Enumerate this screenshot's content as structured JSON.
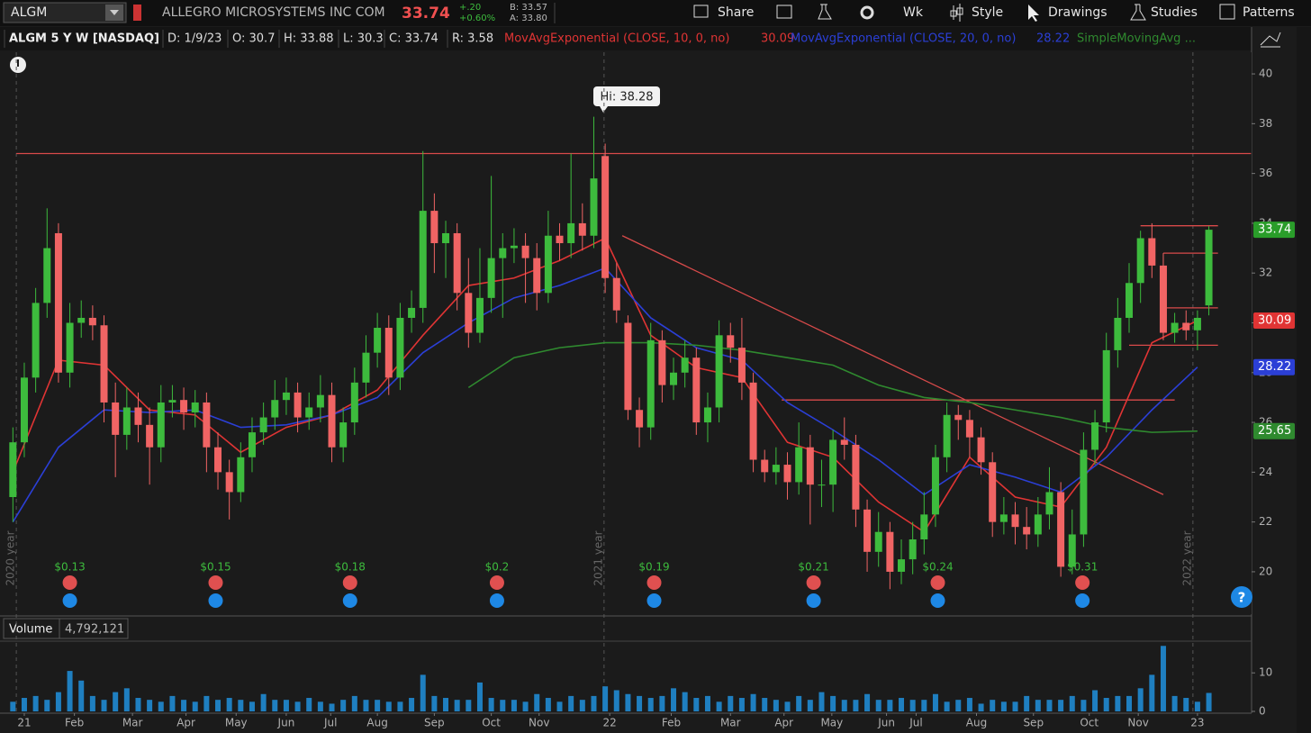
{
  "toolbar": {
    "symbol": "ALGM",
    "company": "ALLEGRO MICROSYSTEMS INC COM",
    "last": "33.74",
    "change": "+.20",
    "change_pct": "+0.60%",
    "bid": "B: 33.57",
    "ask": "A: 33.80",
    "buttons": [
      "Share",
      "Wk",
      "Style",
      "Drawings",
      "Studies",
      "Patterns"
    ]
  },
  "info_bar": [
    "ALGM 5 Y W [NASDAQ]",
    "D: 1/9/23",
    "O: 30.7",
    "H: 33.88",
    "L: 30.3",
    "C: 33.74",
    "R: 3.58"
  ],
  "chart_data": [
    {
      "type": "candlestick",
      "high_label": "Hi: 38.28",
      "xlim": [
        -0.5,
        108.75
      ],
      "ylim": [
        18.37,
        40.87
      ],
      "yticks": [
        20,
        22,
        24,
        26,
        28,
        30,
        32,
        34,
        36,
        38,
        40
      ],
      "up_color": "#3dbb3d",
      "down_color": "#f06464",
      "open": [
        23.0,
        25.2,
        27.8,
        30.8,
        33.6,
        28.0,
        30.0,
        30.2,
        29.9,
        26.8,
        25.5,
        26.6,
        25.9,
        25.0,
        26.8,
        26.9,
        26.4,
        26.8,
        25.0,
        24.0,
        23.2,
        24.6,
        25.6,
        26.2,
        26.9,
        27.2,
        26.2,
        26.6,
        27.1,
        25.0,
        26.0,
        27.6,
        28.8,
        29.8,
        27.8,
        30.2,
        30.6,
        34.5,
        33.2,
        33.6,
        31.2,
        29.6,
        31.0,
        32.6,
        33.0,
        33.1,
        32.6,
        31.2,
        33.5,
        33.2,
        34.0,
        33.5,
        36.7,
        31.8,
        30.0,
        26.5,
        25.8,
        29.3,
        27.5,
        28.0,
        28.6,
        26.0,
        26.6,
        29.5,
        29.0,
        27.6,
        24.5,
        24.0,
        24.3,
        23.6,
        25.0,
        23.5,
        23.5,
        25.3,
        25.1,
        22.5,
        20.8,
        21.6,
        20.0,
        20.5,
        21.3,
        22.3,
        24.6,
        26.3,
        26.1,
        25.4,
        24.4,
        22.0,
        22.3,
        21.8,
        21.5,
        22.3,
        23.2,
        20.2,
        21.5,
        24.9,
        26.0,
        28.9,
        30.2,
        31.6,
        33.4,
        32.3,
        29.6,
        30.0,
        29.7,
        30.7
      ],
      "high": [
        25.8,
        28.4,
        31.4,
        34.6,
        34.0,
        30.8,
        30.9,
        30.7,
        30.3,
        27.6,
        27.4,
        27.2,
        26.6,
        27.5,
        27.5,
        27.4,
        27.3,
        27.2,
        25.6,
        24.5,
        25.2,
        26.2,
        26.8,
        27.7,
        27.8,
        27.6,
        27.2,
        27.9,
        27.6,
        26.6,
        28.2,
        29.5,
        30.4,
        30.3,
        30.8,
        31.3,
        36.9,
        35.2,
        34.1,
        34.0,
        32.6,
        33.0,
        35.9,
        33.6,
        33.8,
        33.6,
        33.2,
        34.5,
        34.0,
        36.8,
        34.8,
        38.28,
        37.2,
        32.4,
        30.3,
        27.0,
        30.0,
        29.7,
        28.6,
        29.3,
        29.0,
        27.2,
        30.1,
        30.0,
        30.2,
        28.0,
        24.9,
        25.0,
        24.8,
        26.0,
        25.5,
        24.5,
        25.7,
        26.2,
        25.5,
        22.9,
        22.4,
        22.0,
        21.3,
        22.0,
        23.2,
        25.1,
        26.8,
        26.7,
        26.5,
        25.8,
        24.8,
        23.0,
        22.8,
        22.6,
        23.0,
        24.2,
        23.6,
        22.5,
        25.6,
        26.5,
        29.6,
        31.0,
        32.4,
        33.7,
        34.0,
        32.8,
        30.4,
        30.5,
        30.5,
        33.88
      ],
      "low": [
        22.0,
        24.6,
        27.2,
        30.2,
        27.6,
        27.4,
        29.4,
        29.3,
        26.0,
        23.8,
        24.9,
        25.2,
        23.5,
        24.4,
        26.2,
        25.7,
        25.8,
        24.0,
        23.3,
        22.1,
        22.8,
        24.0,
        25.1,
        25.7,
        26.3,
        25.6,
        25.7,
        26.0,
        24.4,
        24.4,
        25.5,
        27.0,
        28.2,
        27.1,
        27.3,
        29.6,
        30.0,
        32.0,
        31.8,
        30.5,
        29.0,
        29.2,
        30.4,
        30.2,
        32.4,
        30.8,
        30.5,
        30.8,
        32.5,
        32.6,
        32.9,
        33.0,
        31.2,
        30.0,
        26.1,
        25.0,
        25.3,
        26.8,
        26.9,
        27.4,
        25.5,
        25.2,
        26.0,
        28.4,
        26.9,
        24.0,
        23.6,
        23.5,
        22.9,
        23.1,
        21.9,
        22.6,
        22.4,
        24.5,
        21.8,
        20.0,
        20.2,
        19.3,
        19.5,
        19.9,
        20.7,
        21.8,
        24.0,
        25.3,
        24.6,
        23.9,
        21.4,
        21.5,
        21.1,
        20.9,
        21.0,
        21.7,
        19.8,
        19.9,
        21.0,
        24.3,
        25.6,
        28.2,
        29.6,
        30.8,
        31.8,
        29.3,
        29.2,
        29.3,
        28.9,
        30.3
      ],
      "close": [
        25.2,
        27.8,
        30.8,
        33.0,
        28.0,
        30.0,
        30.2,
        29.9,
        26.8,
        25.5,
        26.6,
        25.9,
        25.0,
        26.8,
        26.9,
        26.4,
        26.8,
        25.0,
        24.0,
        23.2,
        24.6,
        25.6,
        26.2,
        26.9,
        27.2,
        26.2,
        26.6,
        27.1,
        25.0,
        26.0,
        27.6,
        28.8,
        29.8,
        27.8,
        30.2,
        30.6,
        34.5,
        33.2,
        33.6,
        31.2,
        29.6,
        31.0,
        32.6,
        33.0,
        33.1,
        32.6,
        31.2,
        33.5,
        33.2,
        34.0,
        33.5,
        35.8,
        31.8,
        30.5,
        26.5,
        25.8,
        29.3,
        27.5,
        28.0,
        28.6,
        26.0,
        26.6,
        29.5,
        29.0,
        27.6,
        24.5,
        24.0,
        24.3,
        23.6,
        25.0,
        23.5,
        23.5,
        25.3,
        25.1,
        22.5,
        20.8,
        21.6,
        20.0,
        20.5,
        21.3,
        22.3,
        24.6,
        26.3,
        26.1,
        25.4,
        24.4,
        22.0,
        22.3,
        21.8,
        21.5,
        22.3,
        23.2,
        20.2,
        21.5,
        24.9,
        26.0,
        28.9,
        30.2,
        31.6,
        33.4,
        32.3,
        29.6,
        30.0,
        29.7,
        30.2,
        33.74
      ],
      "series": [
        {
          "name": "MovAvgExponential (CLOSE, 10, 0, no)",
          "color": "#e03434",
          "x": [
            0,
            4,
            8,
            12,
            16,
            20,
            24,
            28,
            32,
            36,
            40,
            44,
            48,
            52,
            56,
            60,
            64,
            68,
            72,
            76,
            80,
            84,
            88,
            92,
            96,
            100,
            104
          ],
          "values": [
            24.0,
            28.5,
            28.3,
            26.5,
            26.3,
            24.8,
            25.8,
            26.3,
            27.3,
            29.5,
            31.5,
            31.8,
            32.5,
            33.4,
            29.5,
            28.2,
            27.8,
            25.2,
            24.6,
            22.8,
            21.6,
            24.6,
            23.0,
            22.6,
            25.0,
            29.2,
            30.09
          ]
        },
        {
          "name": "MovAvgExponential (CLOSE, 20, 0, no)",
          "color": "#2b3fd6",
          "x": [
            0,
            4,
            8,
            12,
            16,
            20,
            24,
            28,
            32,
            36,
            40,
            44,
            48,
            52,
            56,
            60,
            64,
            68,
            72,
            76,
            80,
            84,
            88,
            92,
            96,
            100,
            104
          ],
          "values": [
            22.0,
            25.0,
            26.5,
            26.4,
            26.5,
            25.8,
            25.9,
            26.3,
            27.0,
            28.8,
            30.0,
            31.0,
            31.5,
            32.2,
            30.2,
            29.0,
            28.5,
            26.8,
            25.7,
            24.5,
            23.1,
            24.3,
            23.8,
            23.2,
            24.6,
            26.5,
            28.22
          ]
        },
        {
          "name": "SimpleMovingAvg ...",
          "color": "#2f8a2f",
          "x": [
            40,
            44,
            48,
            52,
            56,
            60,
            64,
            68,
            72,
            76,
            80,
            84,
            88,
            92,
            96,
            100,
            104
          ],
          "values": [
            27.4,
            28.6,
            29.0,
            29.2,
            29.2,
            29.1,
            28.9,
            28.6,
            28.3,
            27.5,
            27.0,
            26.8,
            26.5,
            26.2,
            25.8,
            25.6,
            25.65
          ]
        }
      ],
      "levels": [
        {
          "x": [
            0.3,
            108.7
          ],
          "values": [
            36.8,
            36.8
          ]
        },
        {
          "x": [
            67.5,
            102
          ],
          "values": [
            26.9,
            26.9
          ]
        },
        {
          "x": [
            53.5,
            101
          ],
          "values": [
            33.5,
            23.1
          ]
        },
        {
          "x": [
            99,
            105.8
          ],
          "values": [
            33.9,
            33.9
          ]
        },
        {
          "x": [
            101,
            105.8
          ],
          "values": [
            32.8,
            32.8
          ]
        },
        {
          "x": [
            101,
            105.8
          ],
          "values": [
            30.6,
            30.6
          ]
        },
        {
          "x": [
            98,
            105.8
          ],
          "values": [
            29.1,
            29.1
          ]
        }
      ],
      "earnings": [
        {
          "x": 5,
          "label": "$0.13"
        },
        {
          "x": 17.8,
          "label": "$0.15"
        },
        {
          "x": 29.6,
          "label": "$0.18"
        },
        {
          "x": 42.5,
          "label": "$0.2"
        },
        {
          "x": 56.3,
          "label": "$0.19"
        },
        {
          "x": 70.3,
          "label": "$0.21"
        },
        {
          "x": 81.2,
          "label": "$0.24"
        },
        {
          "x": 93.9,
          "label": "$0.31"
        }
      ],
      "separators": [
        {
          "x": 0.3,
          "label": "2020 year"
        },
        {
          "x": 51.9,
          "label": "2021 year"
        },
        {
          "x": 103.6,
          "label": "2022 year"
        }
      ]
    },
    {
      "type": "bar",
      "title": "Volume",
      "value_label": "4,792,121",
      "color": "#1f7fc0",
      "xlim": [
        -0.5,
        108.75
      ],
      "ylim": [
        0,
        18
      ],
      "yticks": [
        0,
        10
      ],
      "xticks": [
        {
          "value": 1,
          "label": "21"
        },
        {
          "value": 5.4,
          "label": "Feb"
        },
        {
          "value": 10.5,
          "label": "Mar"
        },
        {
          "value": 15.2,
          "label": "Apr"
        },
        {
          "value": 19.6,
          "label": "May"
        },
        {
          "value": 24,
          "label": "Jun"
        },
        {
          "value": 27.9,
          "label": "Jul"
        },
        {
          "value": 32,
          "label": "Aug"
        },
        {
          "value": 37,
          "label": "Sep"
        },
        {
          "value": 42,
          "label": "Oct"
        },
        {
          "value": 46.2,
          "label": "Nov"
        },
        {
          "value": 52.4,
          "label": "22"
        },
        {
          "value": 57.8,
          "label": "Feb"
        },
        {
          "value": 63,
          "label": "Mar"
        },
        {
          "value": 67.7,
          "label": "Apr"
        },
        {
          "value": 71.9,
          "label": "May"
        },
        {
          "value": 76.7,
          "label": "Jun"
        },
        {
          "value": 79.3,
          "label": "Jul"
        },
        {
          "value": 84.6,
          "label": "Aug"
        },
        {
          "value": 89.6,
          "label": "Sep"
        },
        {
          "value": 94.5,
          "label": "Oct"
        },
        {
          "value": 98.8,
          "label": "Nov"
        },
        {
          "value": 104,
          "label": "23"
        }
      ],
      "values": [
        2.5,
        3.5,
        4,
        3,
        5,
        10.5,
        8,
        4,
        3,
        5,
        6,
        3.5,
        3,
        2.5,
        4,
        3,
        2.5,
        4,
        3,
        3.5,
        3,
        2.5,
        4.5,
        3,
        3,
        2.5,
        3.5,
        2.5,
        2,
        3,
        4,
        3,
        3,
        2.5,
        2.5,
        3.5,
        9.5,
        4,
        3.5,
        3,
        3,
        7.5,
        3.5,
        3,
        3,
        2.5,
        4.5,
        3.5,
        2.5,
        4,
        3,
        4,
        6.5,
        5.5,
        4.5,
        4,
        3.5,
        4,
        6,
        5,
        3.5,
        4,
        2.5,
        4,
        3.5,
        4.5,
        3.5,
        3,
        2.5,
        4,
        3,
        5,
        4,
        3,
        3,
        4.5,
        3,
        3,
        3.5,
        3,
        3,
        4.5,
        2.5,
        3,
        3.5,
        2,
        3,
        2.5,
        2.5,
        4,
        3,
        3,
        3,
        4,
        3,
        5.5,
        3.5,
        4,
        4,
        6,
        9.5,
        17,
        4,
        3.5,
        2.5,
        4.792121
      ]
    }
  ]
}
